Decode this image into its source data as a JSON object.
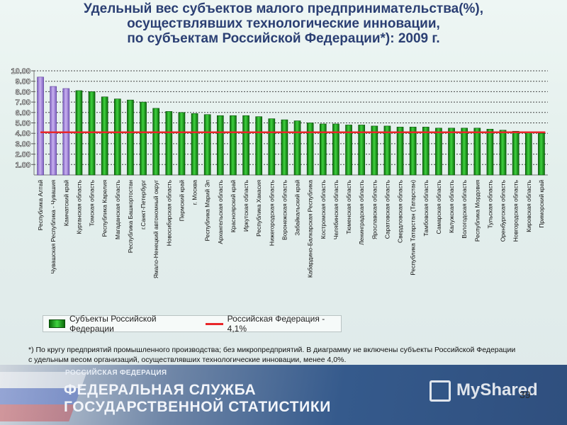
{
  "title_lines": [
    "Удельный вес субъектов малого предпринимательства(%),",
    "осуществлявших технологические инновации,",
    "по субъектам Российской Федерации*): 2009 г."
  ],
  "footnote": "*) По кругу предприятий промышленного производства; без микропредприятий. В диаграмму не включены субъекты Российской Федерации с удельным весом организаций, осуществлявших технологические инновации, менее 4,0%.",
  "footer": {
    "org_small": "РОССИЙСКАЯ ФЕДЕРАЦИЯ",
    "org_line1": "ФЕДЕРАЛЬНАЯ СЛУЖБА",
    "org_line2": "ГОСУДАРСТВЕННОЙ СТАТИСТИКИ",
    "logo_text": "MyShared",
    "page_number": "39"
  },
  "colors": {
    "bar_green": "#2fc12f",
    "bar_dark": "#0a6b0a",
    "bar_violet": "#b79be6",
    "reference_line": "#e8262a",
    "title": "#2b3f73"
  },
  "chart_data": {
    "type": "bar",
    "ylim": [
      0,
      10
    ],
    "yticks": [
      "1.00",
      "2.00",
      "3.00",
      "4.00",
      "5.00",
      "6.00",
      "7.00",
      "8.00",
      "9.00",
      "10.00"
    ],
    "grid": "horizontal dotted",
    "categories": [
      "Республика Алтай",
      "Чувашская Республика - Чувашия",
      "Камчатский край",
      "Курганская область",
      "Томская область",
      "Республика Карелия",
      "Магаданская область",
      "Республика Башкортостан",
      "г.Санкт-Петербург",
      "Ямало-Ненецкий автономный округ",
      "Новосибирская область",
      "Пермский край",
      "г. Москва",
      "Республика Марий Эл",
      "Архангельская область",
      "Красноярский край",
      "Иркутская область",
      "Республика Хакасия",
      "Нижегородская область",
      "Воронежская область",
      "Забайкальский край",
      "Кабардино-Балкарская Республика",
      "Костромская область",
      "Челябинская область",
      "Тюменская область",
      "Ленинградская область",
      "Ярославская область",
      "Саратовская область",
      "Свердловская область",
      "Республика Татарстан (Татарстан)",
      "Тамбовская область",
      "Самарская область",
      "Калужская область",
      "Вологодская область",
      "Республика Мордовия",
      "Тульская область",
      "Оренбургская область",
      "Новгородская область",
      "Кировская область",
      "Приморский край"
    ],
    "series": [
      {
        "name": "Субъекты Российской Федерации",
        "values": [
          9.4,
          8.5,
          8.3,
          8.1,
          8.0,
          7.5,
          7.3,
          7.2,
          7.0,
          6.4,
          6.1,
          6.0,
          5.9,
          5.8,
          5.7,
          5.7,
          5.7,
          5.6,
          5.4,
          5.3,
          5.2,
          5.0,
          4.9,
          4.9,
          4.8,
          4.8,
          4.7,
          4.7,
          4.6,
          4.6,
          4.6,
          4.5,
          4.5,
          4.5,
          4.5,
          4.4,
          4.3,
          4.2,
          4.1,
          4.0
        ],
        "highlighted_indices": [
          0,
          1,
          2
        ]
      }
    ],
    "reference_line": {
      "name": "Российская Федерация - 4,1%",
      "value": 4.1
    },
    "legend": "bottom-left"
  }
}
